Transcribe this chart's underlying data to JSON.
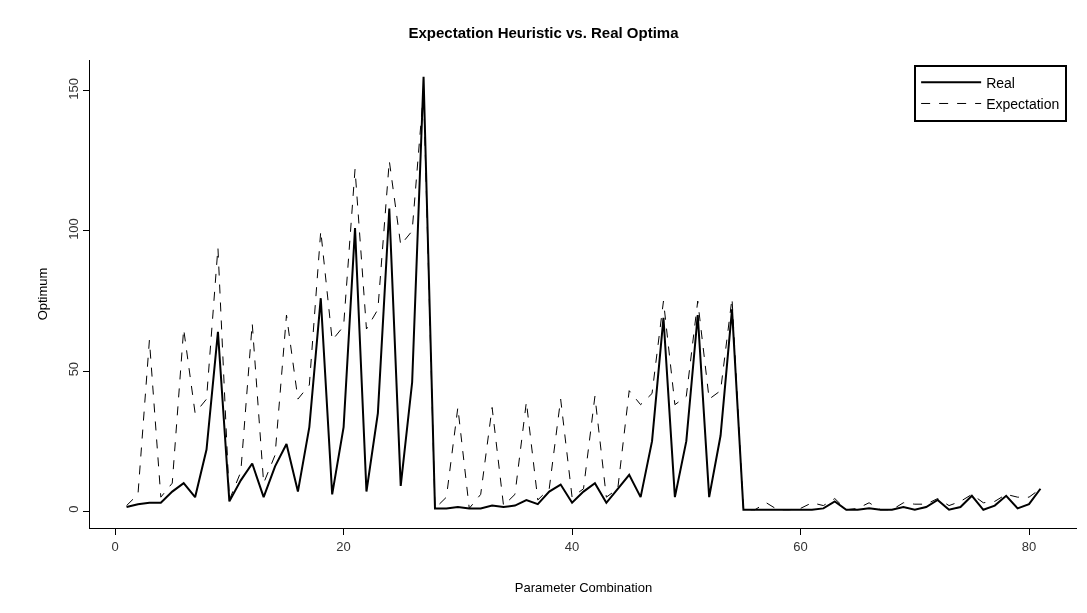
{
  "chart_data": {
    "type": "line",
    "title": "Expectation Heuristic vs. Real Optima",
    "xlabel": "Parameter Combination",
    "ylabel": "Optimum",
    "x": [
      1,
      2,
      3,
      4,
      5,
      6,
      7,
      8,
      9,
      10,
      11,
      12,
      13,
      14,
      15,
      16,
      17,
      18,
      19,
      20,
      21,
      22,
      23,
      24,
      25,
      26,
      27,
      28,
      29,
      30,
      31,
      32,
      33,
      34,
      35,
      36,
      37,
      38,
      39,
      40,
      41,
      42,
      43,
      44,
      45,
      46,
      47,
      48,
      49,
      50,
      51,
      52,
      53,
      54,
      55,
      56,
      57,
      58,
      59,
      60,
      61,
      62,
      63,
      64,
      65,
      66,
      67,
      68,
      69,
      70,
      71,
      72,
      73,
      74,
      75,
      76,
      77,
      78,
      79,
      80,
      81
    ],
    "series": [
      {
        "name": "Real",
        "color": "#000000",
        "line_style": "solid",
        "values": [
          1.5,
          2.5,
          3,
          3,
          7,
          10,
          5,
          22,
          64,
          3.5,
          11,
          17,
          5,
          16,
          24,
          7,
          30,
          76,
          6,
          30,
          101,
          7,
          35,
          108,
          9,
          46,
          155,
          1,
          1,
          1.5,
          1,
          1,
          2,
          1.5,
          2,
          4,
          2.5,
          7,
          9.5,
          3,
          7,
          10,
          3,
          8,
          13,
          5,
          25,
          69,
          5,
          25,
          70,
          5,
          27,
          72,
          0.5,
          0.5,
          0.5,
          0.5,
          0.5,
          0.5,
          0.5,
          1,
          3.5,
          0.5,
          0.5,
          1,
          0.5,
          0.5,
          1.5,
          0.5,
          1.5,
          4,
          0.5,
          1.5,
          5.5,
          0.5,
          2,
          5.5,
          1,
          2.5,
          8
        ]
      },
      {
        "name": "Expectation",
        "color": "#000000",
        "line_style": "dashed",
        "values": [
          2,
          6,
          61,
          5,
          10,
          65,
          35,
          40,
          94,
          4,
          14,
          67,
          10,
          20,
          70,
          40,
          45,
          100,
          61,
          66,
          122,
          65,
          72,
          125,
          95,
          100,
          150,
          1,
          5,
          37,
          1,
          6,
          37,
          2,
          6,
          39,
          4,
          8,
          40,
          5,
          8,
          41,
          5,
          8,
          43,
          38,
          42,
          75,
          38,
          41,
          75,
          40,
          43,
          76,
          0.5,
          0.5,
          3,
          0.5,
          0.5,
          1,
          3,
          2,
          4.5,
          0.5,
          1,
          3,
          0.5,
          0.5,
          3,
          2.5,
          2.5,
          4.5,
          2,
          3.5,
          6,
          3,
          3.5,
          6,
          5,
          5,
          8
        ]
      }
    ],
    "xlim": [
      -2.2,
      84.2
    ],
    "xticks": [
      0,
      20,
      40,
      60,
      80
    ],
    "ylim": [
      -6,
      161
    ],
    "yticks": [
      0,
      50,
      100,
      150
    ],
    "legend": "top right",
    "marker": "none"
  }
}
